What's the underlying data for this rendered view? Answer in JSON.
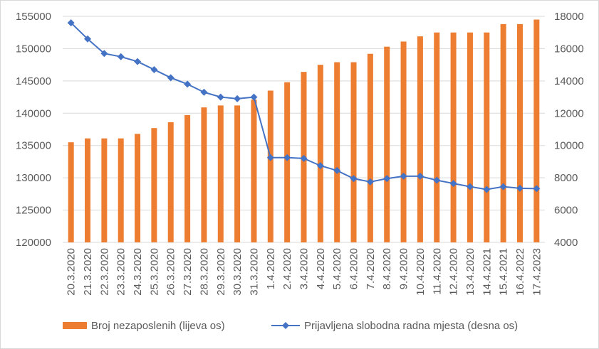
{
  "chart_data": {
    "type": "bar+line",
    "categories": [
      "20.3.2020",
      "21.3.2020",
      "22.3.2020",
      "23.3.2020",
      "24.3.2020",
      "25.3.2020",
      "26.3.2020",
      "27.3.2020",
      "28.3.2020",
      "29.3.2020",
      "30.3.2020",
      "31.3.2020",
      "1.4.2020",
      "2.4.2020",
      "3.4.2020",
      "4.4.2020",
      "5.4.2020",
      "6.4.2020",
      "7.4.2020",
      "8.4.2020",
      "9.4.2020",
      "10.4.2020",
      "11.4.2020",
      "12.4.2020",
      "13.4.2020",
      "14.4.2021",
      "15.4.2021",
      "16.4.2022",
      "17.4.2023"
    ],
    "series": [
      {
        "name": "Broj nezaposlenih (lijeva os)",
        "type": "bar",
        "axis": "left",
        "color": "#ED7D31",
        "values": [
          135500,
          136100,
          136100,
          136100,
          136800,
          137700,
          138600,
          139700,
          140900,
          141200,
          141200,
          142100,
          143500,
          144800,
          146400,
          147500,
          147900,
          147900,
          149200,
          150300,
          151100,
          151900,
          152500,
          152500,
          152500,
          152500,
          153800,
          153800,
          154500
        ]
      },
      {
        "name": "Prijavljena slobodna radna mjesta (desna os)",
        "type": "line",
        "axis": "right",
        "color": "#4472C4",
        "values": [
          17600,
          16600,
          15700,
          15500,
          15200,
          14700,
          14200,
          13800,
          13300,
          13000,
          12900,
          13000,
          9250,
          9250,
          9200,
          8750,
          8450,
          7950,
          7750,
          7950,
          8100,
          8100,
          7850,
          7650,
          7450,
          7280,
          7450,
          7350,
          7330
        ]
      }
    ],
    "y_left": {
      "min": 120000,
      "max": 155000,
      "step": 5000,
      "ticks": [
        "120000",
        "125000",
        "130000",
        "135000",
        "140000",
        "145000",
        "150000",
        "155000"
      ]
    },
    "y_right": {
      "min": 4000,
      "max": 18000,
      "step": 2000,
      "ticks": [
        "4000",
        "6000",
        "8000",
        "10000",
        "12000",
        "14000",
        "16000",
        "18000"
      ]
    },
    "grid": true,
    "legend": "bottom"
  },
  "legend": {
    "bar_label": "Broj nezaposlenih (lijeva os)",
    "line_label": "Prijavljena slobodna radna mjesta (desna os)"
  }
}
